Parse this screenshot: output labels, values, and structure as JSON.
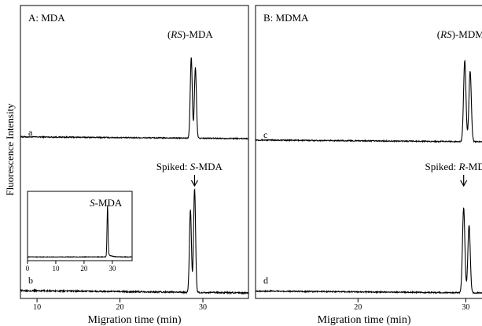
{
  "y_axis_label": "Fluorescence Intensity",
  "chart_data": [
    {
      "type": "line",
      "panel_title": "A: MDA",
      "xlabel": "Migration time (min)",
      "ylabel": "Fluorescence Intensity",
      "xlim": [
        8,
        35.5
      ],
      "xticks": [
        10,
        20,
        30
      ],
      "grid": false,
      "traces": [
        {
          "label": "a",
          "annotation": "(RS)-MDA",
          "baseline": 0.02,
          "peaks": [
            {
              "x": 28.6,
              "height": 0.92,
              "width": 0.12
            },
            {
              "x": 29.1,
              "height": 0.8,
              "width": 0.12
            }
          ]
        },
        {
          "label": "b",
          "annotation": "Spiked: S-MDA",
          "baseline": 0.02,
          "peaks": [
            {
              "x": 28.5,
              "height": 0.7,
              "width": 0.12
            },
            {
              "x": 29.0,
              "height": 0.88,
              "width": 0.12
            }
          ]
        }
      ],
      "inset": {
        "xlim": [
          0,
          37
        ],
        "xticks": [
          0,
          10,
          20,
          30
        ],
        "annotation": "S-MDA",
        "peak": {
          "x": 28.3,
          "height": 0.88
        }
      }
    },
    {
      "type": "line",
      "panel_title": "B: MDMA",
      "xlabel": "Migration time (min)",
      "ylabel": "",
      "xlim": [
        10.5,
        31.5
      ],
      "xticks": [
        20,
        30
      ],
      "grid": false,
      "traces": [
        {
          "label": "c",
          "annotation": "(RS)-MDMA",
          "baseline": 0.02,
          "peaks": [
            {
              "x": 29.9,
              "height": 0.92,
              "width": 0.11
            },
            {
              "x": 30.4,
              "height": 0.8,
              "width": 0.11
            }
          ]
        },
        {
          "label": "d",
          "annotation": "Spiked: R-MDMA",
          "baseline": 0.02,
          "peaks": [
            {
              "x": 29.8,
              "height": 0.9,
              "width": 0.11
            },
            {
              "x": 30.3,
              "height": 0.72,
              "width": 0.11
            }
          ]
        }
      ]
    }
  ]
}
